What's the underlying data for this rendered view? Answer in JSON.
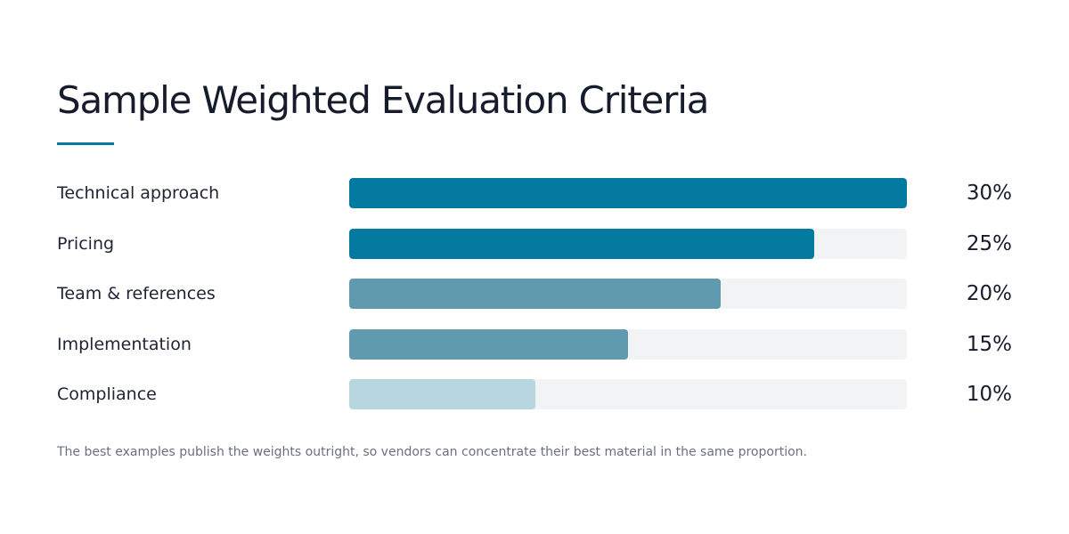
{
  "title": "Sample Weighted Evaluation Criteria",
  "footnote": "The best examples publish the weights outright, so vendors can concentrate their best material in the same proportion.",
  "colors": {
    "accent": "#057aa0",
    "medium": "#5f9aae",
    "light": "#b8d6e0",
    "track": "#f2f3f5"
  },
  "chart_data": {
    "type": "bar",
    "orientation": "horizontal",
    "title": "Sample Weighted Evaluation Criteria",
    "xlabel": "",
    "ylabel": "",
    "xlim": [
      0,
      30
    ],
    "grid": false,
    "legend": "none",
    "categories": [
      "Technical approach",
      "Pricing",
      "Team & references",
      "Implementation",
      "Compliance"
    ],
    "values": [
      30,
      25,
      20,
      15,
      10
    ],
    "value_labels": [
      "30%",
      "25%",
      "20%",
      "15%",
      "10%"
    ],
    "bar_colors": [
      "#057aa0",
      "#057aa0",
      "#5f9aae",
      "#5f9aae",
      "#b8d6e0"
    ]
  }
}
